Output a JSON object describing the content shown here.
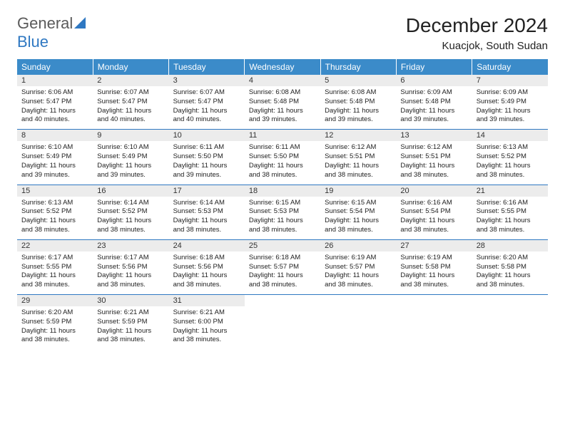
{
  "logo": {
    "word1": "General",
    "word2": "Blue"
  },
  "title": "December 2024",
  "location": "Kuacjok, South Sudan",
  "colors": {
    "header_bg": "#3b8bc9",
    "header_text": "#ffffff",
    "daynum_bg": "#ececec",
    "border": "#2f78c2",
    "logo_gray": "#5a5a5a",
    "logo_blue": "#2f78c2"
  },
  "day_headers": [
    "Sunday",
    "Monday",
    "Tuesday",
    "Wednesday",
    "Thursday",
    "Friday",
    "Saturday"
  ],
  "weeks": [
    [
      {
        "n": "1",
        "sr": "Sunrise: 6:06 AM",
        "ss": "Sunset: 5:47 PM",
        "dl": "Daylight: 11 hours and 40 minutes."
      },
      {
        "n": "2",
        "sr": "Sunrise: 6:07 AM",
        "ss": "Sunset: 5:47 PM",
        "dl": "Daylight: 11 hours and 40 minutes."
      },
      {
        "n": "3",
        "sr": "Sunrise: 6:07 AM",
        "ss": "Sunset: 5:47 PM",
        "dl": "Daylight: 11 hours and 40 minutes."
      },
      {
        "n": "4",
        "sr": "Sunrise: 6:08 AM",
        "ss": "Sunset: 5:48 PM",
        "dl": "Daylight: 11 hours and 39 minutes."
      },
      {
        "n": "5",
        "sr": "Sunrise: 6:08 AM",
        "ss": "Sunset: 5:48 PM",
        "dl": "Daylight: 11 hours and 39 minutes."
      },
      {
        "n": "6",
        "sr": "Sunrise: 6:09 AM",
        "ss": "Sunset: 5:48 PM",
        "dl": "Daylight: 11 hours and 39 minutes."
      },
      {
        "n": "7",
        "sr": "Sunrise: 6:09 AM",
        "ss": "Sunset: 5:49 PM",
        "dl": "Daylight: 11 hours and 39 minutes."
      }
    ],
    [
      {
        "n": "8",
        "sr": "Sunrise: 6:10 AM",
        "ss": "Sunset: 5:49 PM",
        "dl": "Daylight: 11 hours and 39 minutes."
      },
      {
        "n": "9",
        "sr": "Sunrise: 6:10 AM",
        "ss": "Sunset: 5:49 PM",
        "dl": "Daylight: 11 hours and 39 minutes."
      },
      {
        "n": "10",
        "sr": "Sunrise: 6:11 AM",
        "ss": "Sunset: 5:50 PM",
        "dl": "Daylight: 11 hours and 39 minutes."
      },
      {
        "n": "11",
        "sr": "Sunrise: 6:11 AM",
        "ss": "Sunset: 5:50 PM",
        "dl": "Daylight: 11 hours and 38 minutes."
      },
      {
        "n": "12",
        "sr": "Sunrise: 6:12 AM",
        "ss": "Sunset: 5:51 PM",
        "dl": "Daylight: 11 hours and 38 minutes."
      },
      {
        "n": "13",
        "sr": "Sunrise: 6:12 AM",
        "ss": "Sunset: 5:51 PM",
        "dl": "Daylight: 11 hours and 38 minutes."
      },
      {
        "n": "14",
        "sr": "Sunrise: 6:13 AM",
        "ss": "Sunset: 5:52 PM",
        "dl": "Daylight: 11 hours and 38 minutes."
      }
    ],
    [
      {
        "n": "15",
        "sr": "Sunrise: 6:13 AM",
        "ss": "Sunset: 5:52 PM",
        "dl": "Daylight: 11 hours and 38 minutes."
      },
      {
        "n": "16",
        "sr": "Sunrise: 6:14 AM",
        "ss": "Sunset: 5:52 PM",
        "dl": "Daylight: 11 hours and 38 minutes."
      },
      {
        "n": "17",
        "sr": "Sunrise: 6:14 AM",
        "ss": "Sunset: 5:53 PM",
        "dl": "Daylight: 11 hours and 38 minutes."
      },
      {
        "n": "18",
        "sr": "Sunrise: 6:15 AM",
        "ss": "Sunset: 5:53 PM",
        "dl": "Daylight: 11 hours and 38 minutes."
      },
      {
        "n": "19",
        "sr": "Sunrise: 6:15 AM",
        "ss": "Sunset: 5:54 PM",
        "dl": "Daylight: 11 hours and 38 minutes."
      },
      {
        "n": "20",
        "sr": "Sunrise: 6:16 AM",
        "ss": "Sunset: 5:54 PM",
        "dl": "Daylight: 11 hours and 38 minutes."
      },
      {
        "n": "21",
        "sr": "Sunrise: 6:16 AM",
        "ss": "Sunset: 5:55 PM",
        "dl": "Daylight: 11 hours and 38 minutes."
      }
    ],
    [
      {
        "n": "22",
        "sr": "Sunrise: 6:17 AM",
        "ss": "Sunset: 5:55 PM",
        "dl": "Daylight: 11 hours and 38 minutes."
      },
      {
        "n": "23",
        "sr": "Sunrise: 6:17 AM",
        "ss": "Sunset: 5:56 PM",
        "dl": "Daylight: 11 hours and 38 minutes."
      },
      {
        "n": "24",
        "sr": "Sunrise: 6:18 AM",
        "ss": "Sunset: 5:56 PM",
        "dl": "Daylight: 11 hours and 38 minutes."
      },
      {
        "n": "25",
        "sr": "Sunrise: 6:18 AM",
        "ss": "Sunset: 5:57 PM",
        "dl": "Daylight: 11 hours and 38 minutes."
      },
      {
        "n": "26",
        "sr": "Sunrise: 6:19 AM",
        "ss": "Sunset: 5:57 PM",
        "dl": "Daylight: 11 hours and 38 minutes."
      },
      {
        "n": "27",
        "sr": "Sunrise: 6:19 AM",
        "ss": "Sunset: 5:58 PM",
        "dl": "Daylight: 11 hours and 38 minutes."
      },
      {
        "n": "28",
        "sr": "Sunrise: 6:20 AM",
        "ss": "Sunset: 5:58 PM",
        "dl": "Daylight: 11 hours and 38 minutes."
      }
    ],
    [
      {
        "n": "29",
        "sr": "Sunrise: 6:20 AM",
        "ss": "Sunset: 5:59 PM",
        "dl": "Daylight: 11 hours and 38 minutes."
      },
      {
        "n": "30",
        "sr": "Sunrise: 6:21 AM",
        "ss": "Sunset: 5:59 PM",
        "dl": "Daylight: 11 hours and 38 minutes."
      },
      {
        "n": "31",
        "sr": "Sunrise: 6:21 AM",
        "ss": "Sunset: 6:00 PM",
        "dl": "Daylight: 11 hours and 38 minutes."
      },
      {
        "empty": true
      },
      {
        "empty": true
      },
      {
        "empty": true
      },
      {
        "empty": true
      }
    ]
  ]
}
